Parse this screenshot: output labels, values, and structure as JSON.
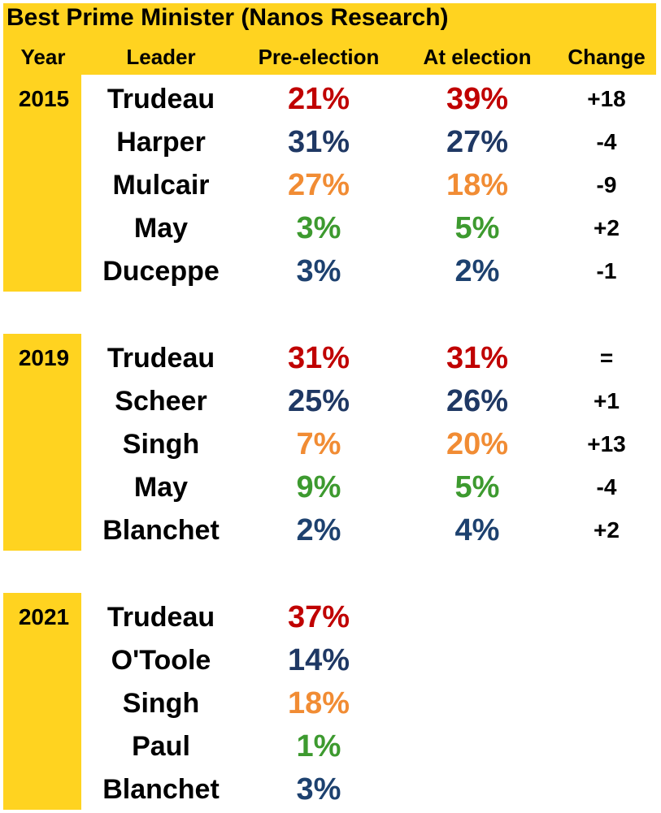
{
  "colors": {
    "band": "#ffd320",
    "liberal": "#c00000",
    "conservative": "#1f3864",
    "ndp": "#f18c34",
    "green": "#3d9a2f",
    "bloc": "#1d416f"
  },
  "chart_data": {
    "type": "table",
    "title": "Best Prime Minister (Nanos Research)",
    "columns": [
      "Year",
      "Leader",
      "Pre-election",
      "At election",
      "Change"
    ],
    "groups": [
      {
        "year": "2015",
        "rows": [
          {
            "leader": "Trudeau",
            "party": "liberal",
            "pre": "21%",
            "at": "39%",
            "change": "+18"
          },
          {
            "leader": "Harper",
            "party": "conservative",
            "pre": "31%",
            "at": "27%",
            "change": "-4"
          },
          {
            "leader": "Mulcair",
            "party": "ndp",
            "pre": "27%",
            "at": "18%",
            "change": "-9"
          },
          {
            "leader": "May",
            "party": "green",
            "pre": "3%",
            "at": "5%",
            "change": "+2"
          },
          {
            "leader": "Duceppe",
            "party": "bloc",
            "pre": "3%",
            "at": "2%",
            "change": "-1"
          }
        ]
      },
      {
        "year": "2019",
        "rows": [
          {
            "leader": "Trudeau",
            "party": "liberal",
            "pre": "31%",
            "at": "31%",
            "change": "="
          },
          {
            "leader": "Scheer",
            "party": "conservative",
            "pre": "25%",
            "at": "26%",
            "change": "+1"
          },
          {
            "leader": "Singh",
            "party": "ndp",
            "pre": "7%",
            "at": "20%",
            "change": "+13"
          },
          {
            "leader": "May",
            "party": "green",
            "pre": "9%",
            "at": "5%",
            "change": "-4"
          },
          {
            "leader": "Blanchet",
            "party": "bloc",
            "pre": "2%",
            "at": "4%",
            "change": "+2"
          }
        ]
      },
      {
        "year": "2021",
        "rows": [
          {
            "leader": "Trudeau",
            "party": "liberal",
            "pre": "37%",
            "at": "",
            "change": ""
          },
          {
            "leader": "O'Toole",
            "party": "conservative",
            "pre": "14%",
            "at": "",
            "change": ""
          },
          {
            "leader": "Singh",
            "party": "ndp",
            "pre": "18%",
            "at": "",
            "change": ""
          },
          {
            "leader": "Paul",
            "party": "green",
            "pre": "1%",
            "at": "",
            "change": ""
          },
          {
            "leader": "Blanchet",
            "party": "bloc",
            "pre": "3%",
            "at": "",
            "change": ""
          }
        ]
      }
    ]
  }
}
